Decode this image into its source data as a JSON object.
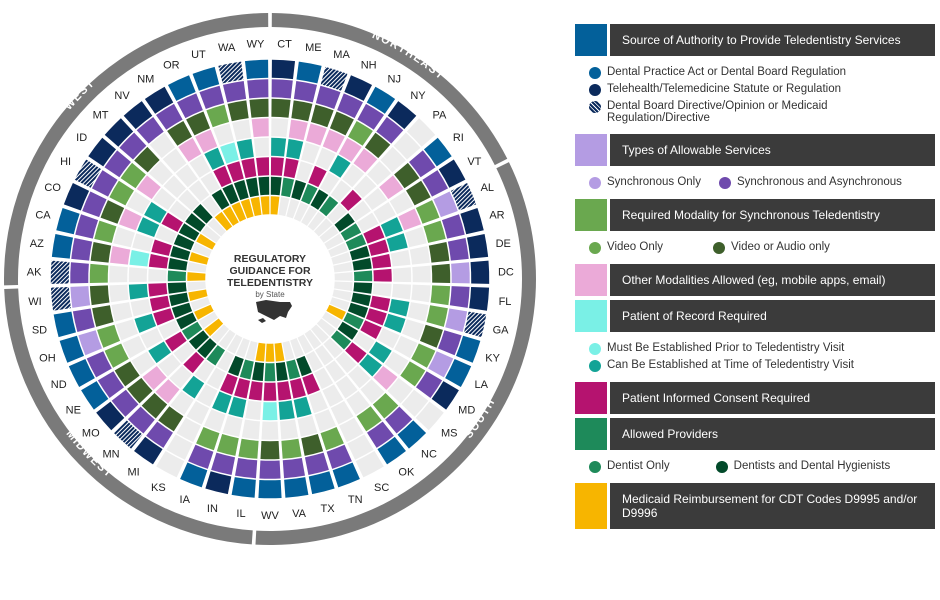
{
  "chart_data": {
    "type": "radial-heatmap",
    "title": "REGULATORY GUIDANCE FOR TELEDENTISTRY",
    "subtitle": "by State",
    "regions": [
      {
        "name": "NORTHEAST",
        "count": 9
      },
      {
        "name": "SOUTH",
        "count": 17
      },
      {
        "name": "MIDWEST",
        "count": 12
      },
      {
        "name": "WEST",
        "count": 13
      }
    ],
    "rings": [
      "source",
      "services",
      "modality",
      "other_modalities",
      "patient_of_record",
      "consent",
      "providers",
      "medicaid"
    ],
    "codes_note": "source:1 DPA,2 telehealth,3 directive; services:1 sync,2 sync+async; modality:1 video,2 video/audio; other:1 yes; por:1 prior,2 at time; consent:1 yes; providers:1 dentist,2 dentist+hygienist; medicaid:1 yes; 0 none",
    "states": [
      [
        "CT",
        2,
        2,
        2,
        0,
        2,
        1,
        2,
        1
      ],
      [
        "ME",
        1,
        2,
        2,
        1,
        2,
        1,
        1,
        0
      ],
      [
        "MA",
        3,
        2,
        2,
        1,
        0,
        0,
        2,
        0
      ],
      [
        "NH",
        2,
        2,
        2,
        1,
        0,
        1,
        1,
        0
      ],
      [
        "NJ",
        1,
        2,
        1,
        1,
        2,
        0,
        2,
        0
      ],
      [
        "NY",
        2,
        2,
        2,
        1,
        0,
        0,
        1,
        0
      ],
      [
        "PA",
        0,
        0,
        0,
        0,
        0,
        1,
        0,
        0
      ],
      [
        "RI",
        1,
        2,
        2,
        1,
        0,
        0,
        2,
        0
      ],
      [
        "VT",
        2,
        2,
        2,
        0,
        0,
        0,
        1,
        0
      ],
      [
        "AL",
        3,
        1,
        1,
        1,
        2,
        1,
        1,
        0
      ],
      [
        "AR",
        2,
        2,
        1,
        0,
        2,
        1,
        2,
        0
      ],
      [
        "DE",
        2,
        2,
        2,
        0,
        0,
        1,
        2,
        0
      ],
      [
        "DC",
        2,
        1,
        2,
        0,
        0,
        1,
        1,
        0
      ],
      [
        "FL",
        2,
        2,
        1,
        0,
        0,
        0,
        2,
        0
      ],
      [
        "GA",
        3,
        1,
        1,
        0,
        2,
        1,
        2,
        0
      ],
      [
        "KY",
        1,
        2,
        2,
        0,
        2,
        1,
        2,
        0
      ],
      [
        "LA",
        1,
        1,
        1,
        0,
        0,
        1,
        1,
        1
      ],
      [
        "MD",
        2,
        2,
        1,
        0,
        2,
        0,
        2,
        0
      ],
      [
        "MS",
        0,
        0,
        0,
        1,
        2,
        1,
        1,
        0
      ],
      [
        "NC",
        1,
        2,
        1,
        0,
        0,
        0,
        0,
        0
      ],
      [
        "OK",
        1,
        2,
        1,
        0,
        0,
        0,
        0,
        0
      ],
      [
        "SC",
        0,
        0,
        0,
        0,
        0,
        0,
        0,
        0
      ],
      [
        "TN",
        1,
        2,
        1,
        0,
        0,
        1,
        2,
        0
      ],
      [
        "TX",
        1,
        2,
        2,
        0,
        2,
        1,
        1,
        0
      ],
      [
        "VA",
        1,
        2,
        1,
        0,
        2,
        1,
        2,
        1
      ],
      [
        "WV",
        1,
        2,
        2,
        0,
        1,
        1,
        1,
        1
      ],
      [
        "IL",
        1,
        2,
        1,
        0,
        0,
        1,
        2,
        1
      ],
      [
        "IN",
        2,
        2,
        1,
        0,
        2,
        1,
        1,
        0
      ],
      [
        "IA",
        1,
        2,
        1,
        0,
        2,
        1,
        2,
        0
      ],
      [
        "KS",
        0,
        0,
        0,
        0,
        0,
        0,
        0,
        0
      ],
      [
        "MI",
        2,
        2,
        2,
        0,
        2,
        0,
        1,
        0
      ],
      [
        "MN",
        3,
        2,
        2,
        1,
        0,
        1,
        2,
        0
      ],
      [
        "MO",
        2,
        2,
        2,
        1,
        0,
        0,
        2,
        1
      ],
      [
        "NE",
        1,
        2,
        2,
        0,
        2,
        1,
        1,
        0
      ],
      [
        "ND",
        1,
        2,
        1,
        0,
        0,
        0,
        2,
        1
      ],
      [
        "OH",
        1,
        1,
        1,
        0,
        2,
        1,
        2,
        0
      ],
      [
        "SD",
        1,
        2,
        2,
        0,
        0,
        1,
        2,
        1
      ],
      [
        "WI",
        3,
        1,
        2,
        0,
        2,
        1,
        2,
        0
      ],
      [
        "AK",
        3,
        2,
        1,
        0,
        0,
        0,
        1,
        1
      ],
      [
        "AZ",
        1,
        2,
        2,
        1,
        1,
        1,
        2,
        0
      ],
      [
        "CA",
        1,
        2,
        1,
        0,
        0,
        1,
        2,
        1
      ],
      [
        "CO",
        2,
        2,
        2,
        1,
        2,
        0,
        2,
        0
      ],
      [
        "HI",
        3,
        2,
        1,
        0,
        2,
        1,
        2,
        1
      ],
      [
        "ID",
        2,
        2,
        1,
        1,
        0,
        0,
        2,
        0
      ],
      [
        "MT",
        2,
        2,
        2,
        0,
        0,
        0,
        2,
        0
      ],
      [
        "NV",
        2,
        2,
        0,
        0,
        0,
        0,
        0,
        1
      ],
      [
        "NM",
        2,
        2,
        2,
        1,
        0,
        0,
        2,
        1
      ],
      [
        "OR",
        1,
        2,
        2,
        1,
        2,
        1,
        2,
        1
      ],
      [
        "UT",
        1,
        2,
        1,
        0,
        1,
        1,
        2,
        1
      ],
      [
        "WA",
        3,
        2,
        2,
        0,
        2,
        1,
        2,
        1
      ],
      [
        "WY",
        1,
        2,
        2,
        1,
        0,
        1,
        2,
        1
      ]
    ]
  },
  "center": {
    "line1": "REGULATORY",
    "line2": "GUIDANCE FOR",
    "line3": "TELEDENTISTRY",
    "sub": "by State"
  },
  "colors": {
    "empty": "#ececec",
    "region": "#7a7a7a",
    "source": [
      "#03609a",
      "#0b2a5c",
      "hatch"
    ],
    "services": [
      "#b49ce3",
      "#6f4aad"
    ],
    "modality": [
      "#6aa84f",
      "#3e5f2b"
    ],
    "other": [
      "#ebaad8"
    ],
    "por": [
      "#7af0e6",
      "#13a396"
    ],
    "consent": [
      "#b5136f"
    ],
    "providers": [
      "#1e8a5a",
      "#024a2a"
    ],
    "medicaid": [
      "#f7b500"
    ]
  },
  "legend": {
    "s1": {
      "title": "Source of Authority to Provide Teledentistry Services",
      "i1": "Dental Practice Act or Dental Board Regulation",
      "i2": "Telehealth/Telemedicine Statute or Regulation",
      "i3": "Dental Board Directive/Opinion or Medicaid Regulation/Directive"
    },
    "s2": {
      "title": "Types of Allowable Services",
      "i1": "Synchronous Only",
      "i2": "Synchronous and Asynchronous"
    },
    "s3": {
      "title": "Required Modality for Synchronous Teledentistry",
      "i1": "Video Only",
      "i2": "Video or Audio only"
    },
    "s4": {
      "title": "Other Modalities Allowed (eg, mobile apps, email)"
    },
    "s5": {
      "title": "Patient of Record Required",
      "i1": "Must Be Established Prior to Teledentistry Visit",
      "i2": "Can Be Established at Time of Teledentistry Visit"
    },
    "s6": {
      "title": "Patient Informed Consent Required"
    },
    "s7": {
      "title": "Allowed Providers",
      "i1": "Dentist Only",
      "i2": "Dentists and Dental Hygienists"
    },
    "s8": {
      "title": "Medicaid Reimbursement for CDT Codes D9995 and/or D9996"
    }
  }
}
